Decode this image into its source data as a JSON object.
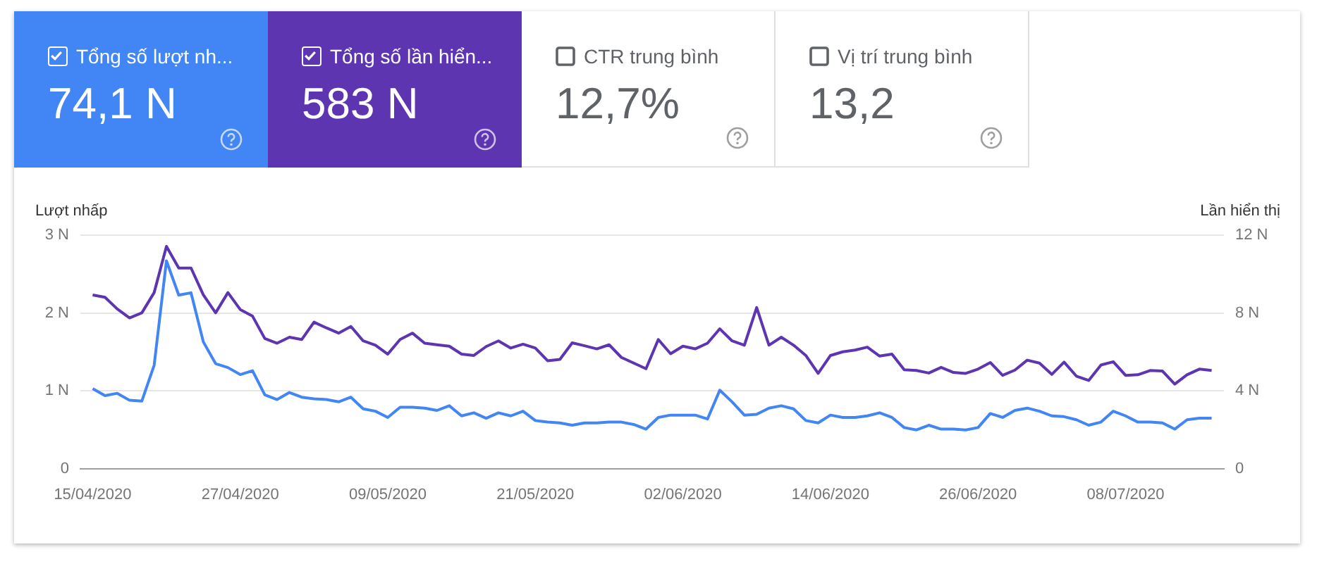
{
  "chart_data": {
    "type": "line",
    "ylabel": "Lượt nhấp",
    "y2label": "Lần hiển thị",
    "x": [
      "2020-04-15",
      "2020-04-16",
      "2020-04-17",
      "2020-04-18",
      "2020-04-19",
      "2020-04-20",
      "2020-04-21",
      "2020-04-22",
      "2020-04-23",
      "2020-04-24",
      "2020-04-25",
      "2020-04-26",
      "2020-04-27",
      "2020-04-28",
      "2020-04-29",
      "2020-04-30",
      "2020-05-01",
      "2020-05-02",
      "2020-05-03",
      "2020-05-04",
      "2020-05-05",
      "2020-05-06",
      "2020-05-07",
      "2020-05-08",
      "2020-05-09",
      "2020-05-10",
      "2020-05-11",
      "2020-05-12",
      "2020-05-13",
      "2020-05-14",
      "2020-05-15",
      "2020-05-16",
      "2020-05-17",
      "2020-05-18",
      "2020-05-19",
      "2020-05-20",
      "2020-05-21",
      "2020-05-22",
      "2020-05-23",
      "2020-05-24",
      "2020-05-25",
      "2020-05-26",
      "2020-05-27",
      "2020-05-28",
      "2020-05-29",
      "2020-05-30",
      "2020-05-31",
      "2020-06-01",
      "2020-06-02",
      "2020-06-03",
      "2020-06-04",
      "2020-06-05",
      "2020-06-06",
      "2020-06-07",
      "2020-06-08",
      "2020-06-09",
      "2020-06-10",
      "2020-06-11",
      "2020-06-12",
      "2020-06-13",
      "2020-06-14",
      "2020-06-15",
      "2020-06-16",
      "2020-06-17",
      "2020-06-18",
      "2020-06-19",
      "2020-06-20",
      "2020-06-21",
      "2020-06-22",
      "2020-06-23",
      "2020-06-24",
      "2020-06-25",
      "2020-06-26",
      "2020-06-27",
      "2020-06-28",
      "2020-06-29",
      "2020-06-30",
      "2020-07-01",
      "2020-07-02",
      "2020-07-03",
      "2020-07-04",
      "2020-07-05",
      "2020-07-06",
      "2020-07-07",
      "2020-07-08",
      "2020-07-09",
      "2020-07-10",
      "2020-07-11",
      "2020-07-12",
      "2020-07-13",
      "2020-07-14",
      "2020-07-15"
    ],
    "series": [
      {
        "name": "Tổng số lượt nh...",
        "color": "#4285f4",
        "values": [
          1.03,
          0.94,
          0.97,
          0.88,
          0.87,
          1.33,
          2.67,
          2.23,
          2.26,
          1.63,
          1.35,
          1.3,
          1.21,
          1.26,
          0.95,
          0.89,
          0.98,
          0.92,
          0.9,
          0.89,
          0.86,
          0.92,
          0.77,
          0.74,
          0.66,
          0.79,
          0.79,
          0.78,
          0.75,
          0.81,
          0.68,
          0.72,
          0.65,
          0.72,
          0.68,
          0.74,
          0.62,
          0.6,
          0.59,
          0.56,
          0.59,
          0.59,
          0.6,
          0.6,
          0.57,
          0.51,
          0.66,
          0.69,
          0.69,
          0.69,
          0.64,
          1.01,
          0.86,
          0.69,
          0.7,
          0.78,
          0.81,
          0.77,
          0.62,
          0.59,
          0.69,
          0.66,
          0.66,
          0.68,
          0.72,
          0.66,
          0.53,
          0.5,
          0.56,
          0.51,
          0.51,
          0.5,
          0.53,
          0.71,
          0.66,
          0.75,
          0.78,
          0.74,
          0.68,
          0.67,
          0.63,
          0.56,
          0.6,
          0.74,
          0.68,
          0.6,
          0.6,
          0.59,
          0.51,
          0.63,
          0.65,
          0.65
        ]
      },
      {
        "name": "Tổng số lần hiển...",
        "color": "#5e35b1",
        "axis": "y2",
        "values": [
          8.93,
          8.81,
          8.21,
          7.75,
          8.01,
          9.05,
          11.42,
          10.31,
          10.31,
          8.93,
          8.01,
          9.05,
          8.18,
          7.84,
          6.69,
          6.45,
          6.76,
          6.64,
          7.53,
          7.24,
          6.97,
          7.31,
          6.57,
          6.35,
          5.89,
          6.64,
          6.97,
          6.45,
          6.37,
          6.3,
          5.89,
          5.82,
          6.28,
          6.57,
          6.2,
          6.4,
          6.2,
          5.55,
          5.62,
          6.47,
          6.32,
          6.16,
          6.37,
          5.72,
          5.43,
          5.14,
          6.64,
          5.91,
          6.3,
          6.16,
          6.45,
          7.19,
          6.57,
          6.35,
          8.28,
          6.35,
          6.76,
          6.35,
          5.82,
          4.9,
          5.82,
          6.01,
          6.1,
          6.25,
          5.79,
          5.89,
          5.09,
          5.05,
          4.92,
          5.21,
          4.95,
          4.9,
          5.12,
          5.46,
          4.8,
          5.07,
          5.58,
          5.43,
          4.85,
          5.48,
          4.76,
          4.54,
          5.33,
          5.5,
          4.8,
          4.83,
          5.05,
          5.02,
          4.35,
          4.83,
          5.12,
          5.05
        ]
      }
    ],
    "xlim": [
      "2020-04-14",
      "2020-07-16"
    ],
    "xticks": [
      {
        "value": "2020-04-15",
        "label": "15/04/2020"
      },
      {
        "value": "2020-04-27",
        "label": "27/04/2020"
      },
      {
        "value": "2020-05-09",
        "label": "09/05/2020"
      },
      {
        "value": "2020-05-21",
        "label": "21/05/2020"
      },
      {
        "value": "2020-06-02",
        "label": "02/06/2020"
      },
      {
        "value": "2020-06-14",
        "label": "14/06/2020"
      },
      {
        "value": "2020-06-26",
        "label": "26/06/2020"
      },
      {
        "value": "2020-07-08",
        "label": "08/07/2020"
      }
    ],
    "ylim": [
      0,
      3
    ],
    "yticks": [
      0,
      {
        "value": 1,
        "label": "1 N"
      },
      {
        "value": 2,
        "label": "2 N"
      },
      {
        "value": 3,
        "label": "3 N"
      }
    ],
    "y2lim": [
      0,
      12
    ],
    "y2ticks": [
      0,
      {
        "value": 4,
        "label": "4 N"
      },
      {
        "value": 8,
        "label": "8 N"
      },
      {
        "value": 12,
        "label": "12 N"
      }
    ],
    "grid": "y",
    "legend": "top left",
    "marker": "none",
    "line_style": "solid",
    "annotations": [
      "74,1 N",
      "583 N",
      "CTR trung bình",
      "12,7%",
      "Vị trí trung bình",
      "13,2"
    ]
  }
}
